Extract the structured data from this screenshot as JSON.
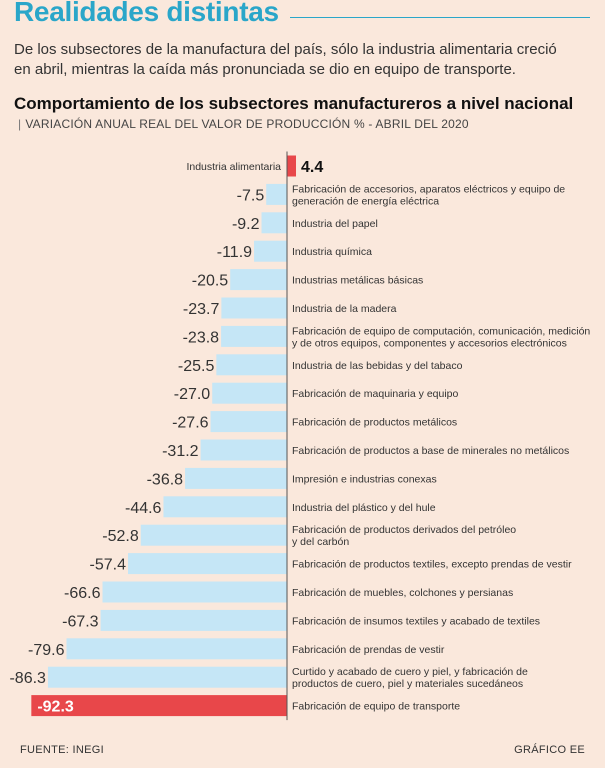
{
  "headline": "Realidades distintas",
  "intro": "De los subsectores de la manufactura del país, sólo la industria alimentaria creció en abril, mientras la caída más pronunciada se dio en equipo de transporte.",
  "chart_title": "Comportamiento de los subsectores manufactureros a nivel nacional",
  "chart_subtitle": "VARIACIÓN ANUAL REAL DEL VALOR DE PRODUCCIÓN % - ABRIL DEL 2020",
  "source": "FUENTE: INEGI",
  "credit": "GRÁFICO EE",
  "colors": {
    "negative": "#c5e6f6",
    "positive": "#e8474a",
    "highlight": "#e8474a",
    "axis": "#555555"
  },
  "chart_data": {
    "type": "bar",
    "orientation": "horizontal",
    "title": "Comportamiento de los subsectores manufactureros a nivel nacional",
    "unit": "%",
    "categories": [
      "Industria alimentaria",
      "Fabricación de accesorios, aparatos eléctricos y equipo de generación de energía eléctrica",
      "Industria del papel",
      "Industria química",
      "Industrias metálicas básicas",
      "Industria de la madera",
      "Fabricación de equipo de computación, comunicación, medición y de otros equipos, componentes y accesorios electrónicos",
      "Industria de las bebidas y del tabaco",
      "Fabricación de maquinaria y equipo",
      "Fabricación de productos metálicos",
      "Fabricación de productos a base de minerales no metálicos",
      "Impresión e industrias conexas",
      "Industria del plástico y del hule",
      "Fabricación de productos derivados del petróleo y del carbón",
      "Fabricación de productos textiles, excepto prendas de vestir",
      "Fabricación de muebles, colchones y persianas",
      "Fabricación de insumos textiles y acabado de textiles",
      "Fabricación de prendas de vestir",
      "Curtido y acabado de cuero y piel, y fabricación de productos de cuero, piel y materiales sucedáneos",
      "Fabricación de equipo de transporte"
    ],
    "label_lines": [
      [
        "Industria alimentaria"
      ],
      [
        "Fabricación de accesorios, aparatos eléctricos y equipo de",
        "generación de energía eléctrica"
      ],
      [
        "Industria del papel"
      ],
      [
        "Industria química"
      ],
      [
        "Industrias metálicas básicas"
      ],
      [
        "Industria de la madera"
      ],
      [
        "Fabricación de equipo de computación, comunicación, medición",
        "y de otros equipos, componentes y accesorios electrónicos"
      ],
      [
        "Industria de las bebidas y del tabaco"
      ],
      [
        "Fabricación de maquinaria y equipo"
      ],
      [
        "Fabricación de productos metálicos"
      ],
      [
        "Fabricación de productos a base de minerales no metálicos"
      ],
      [
        "Impresión e industrias conexas"
      ],
      [
        "Industria del plástico y del hule"
      ],
      [
        "Fabricación de productos derivados del petróleo",
        "y del carbón"
      ],
      [
        "Fabricación de productos textiles, excepto prendas de vestir"
      ],
      [
        "Fabricación de muebles, colchones y persianas"
      ],
      [
        "Fabricación de insumos textiles y acabado de textiles"
      ],
      [
        "Fabricación de prendas de vestir"
      ],
      [
        "Curtido y acabado de cuero y piel, y fabricación de",
        "productos de cuero, piel y materiales sucedáneos"
      ],
      [
        "Fabricación de equipo de transporte"
      ]
    ],
    "value_labels": [
      "4.4",
      "-7.5",
      "-9.2",
      "-11.9",
      "-20.5",
      "-23.7",
      "-23.8",
      "-25.5",
      "-27.0",
      "-27.6",
      "-31.2",
      "-36.8",
      "-44.6",
      "-52.8",
      "-57.4",
      "-66.6",
      "-67.3",
      "-79.6",
      "-86.3",
      "-92.3"
    ],
    "values": [
      4.4,
      -7.5,
      -9.2,
      -11.9,
      -20.5,
      -23.7,
      -23.8,
      -25.5,
      -27.0,
      -27.6,
      -31.2,
      -36.8,
      -44.6,
      -52.8,
      -57.4,
      -66.6,
      -67.3,
      -79.6,
      -86.3,
      -92.3
    ],
    "highlight_index": 19,
    "xlim": [
      -92.3,
      4.4
    ]
  }
}
